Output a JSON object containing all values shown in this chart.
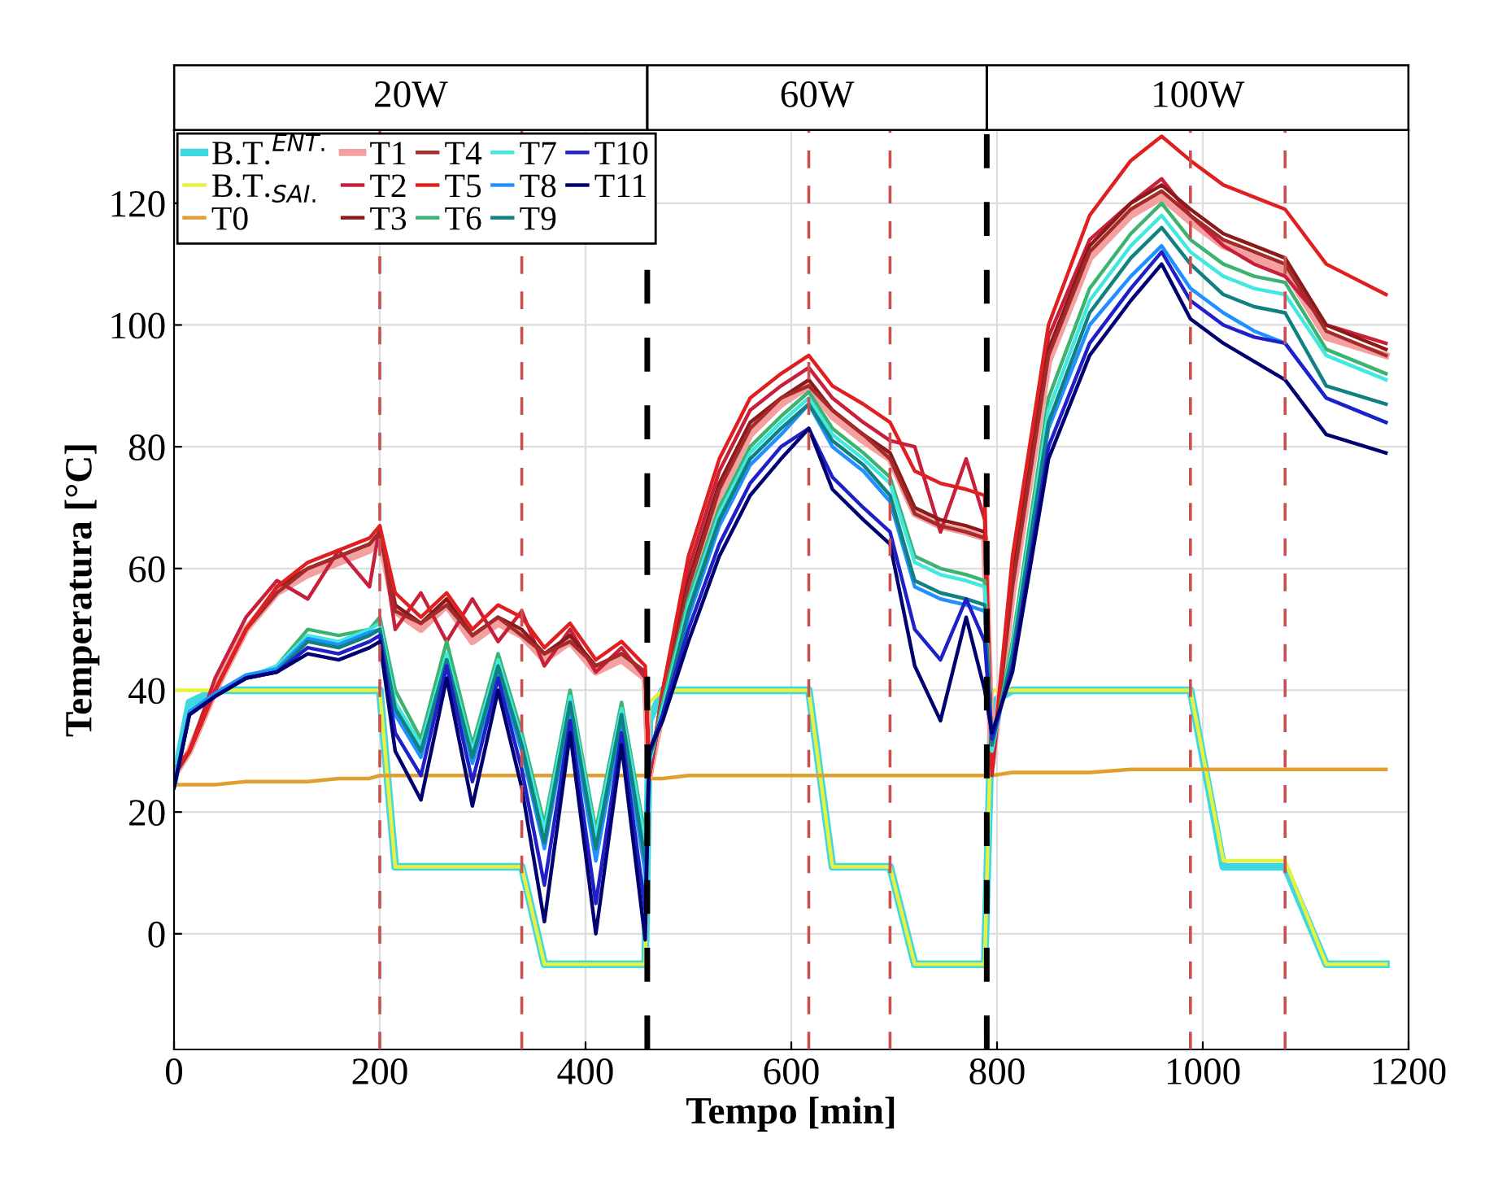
{
  "chart_data": {
    "type": "line",
    "xlabel": "Tempo [min]",
    "ylabel": "Temperatura [°C]",
    "x": [
      0,
      15,
      40,
      70,
      100,
      130,
      160,
      190,
      200,
      215,
      240,
      265,
      290,
      315,
      338,
      360,
      385,
      410,
      435,
      458,
      462,
      475,
      500,
      530,
      560,
      590,
      617,
      640,
      670,
      696,
      720,
      745,
      770,
      788,
      795,
      815,
      850,
      890,
      930,
      960,
      988,
      1020,
      1050,
      1080,
      1120,
      1178
    ],
    "xlim": [
      0,
      1200
    ],
    "xticks": [
      0,
      200,
      400,
      600,
      800,
      1000,
      1200
    ],
    "ylim": [
      -19,
      132
    ],
    "yticks": [
      0,
      20,
      40,
      60,
      80,
      100,
      120
    ],
    "grid": true,
    "legend": "top left",
    "marker": "none",
    "line_style": "solid",
    "annotations": [
      "20W",
      "60W",
      "100W"
    ],
    "ref_lines": [
      {
        "axis": "x",
        "value": 460,
        "color": "#000000",
        "line_style": "dashed"
      },
      {
        "axis": "x",
        "value": 790,
        "color": "#000000",
        "line_style": "dashed"
      },
      {
        "axis": "x",
        "value": 200,
        "color": "#c85050",
        "line_style": "dashed"
      },
      {
        "axis": "x",
        "value": 338,
        "color": "#c85050",
        "line_style": "dashed"
      },
      {
        "axis": "x",
        "value": 617,
        "color": "#c85050",
        "line_style": "dashed"
      },
      {
        "axis": "x",
        "value": 696,
        "color": "#c85050",
        "line_style": "dashed"
      },
      {
        "axis": "x",
        "value": 988,
        "color": "#c85050",
        "line_style": "dashed"
      },
      {
        "axis": "x",
        "value": 1080,
        "color": "#c85050",
        "line_style": "dashed"
      }
    ],
    "series": [
      {
        "name": "B.T.$^{ENT.}$",
        "color": "#40d8e0",
        "values": [
          25,
          38,
          40,
          40,
          40,
          40,
          40,
          40,
          40,
          11,
          11,
          11,
          11,
          11,
          11,
          -5,
          -5,
          -5,
          -5,
          -5,
          35,
          40,
          40,
          40,
          40,
          40,
          40,
          11,
          11,
          11,
          -5,
          -5,
          -5,
          -5,
          38,
          40,
          40,
          40,
          40,
          40,
          40,
          11,
          11,
          11,
          -5,
          -5
        ]
      },
      {
        "name": "B.T.$_{SAI.}$",
        "color": "#e8f040",
        "values": [
          40,
          40,
          40,
          40,
          40,
          40,
          40,
          40,
          40,
          11,
          11,
          11,
          11,
          11,
          11,
          -5,
          -5,
          -5,
          -5,
          -5,
          38,
          40,
          40,
          40,
          40,
          40,
          40,
          11,
          11,
          11,
          -5,
          -5,
          -5,
          -5,
          40,
          40,
          40,
          40,
          40,
          40,
          40,
          12,
          12,
          12,
          -5,
          -5
        ]
      },
      {
        "name": "T0",
        "color": "#e0a030",
        "values": [
          24.5,
          24.5,
          24.5,
          25,
          25,
          25,
          25.5,
          25.5,
          26,
          26,
          26,
          26,
          26,
          26,
          26,
          26,
          26,
          26,
          26,
          26,
          25.5,
          25.5,
          26,
          26,
          26,
          26,
          26,
          26,
          26,
          26,
          26,
          26,
          26,
          26,
          26,
          26.5,
          26.5,
          26.5,
          27,
          27,
          27,
          27,
          27,
          27,
          27,
          27
        ]
      },
      {
        "name": "T1",
        "color": "#f4a0a0",
        "values": [
          26,
          30,
          40,
          50,
          56,
          59,
          61,
          63,
          65,
          53,
          50,
          54,
          48,
          51,
          49,
          45,
          48,
          43,
          45,
          42,
          26,
          37,
          56,
          72,
          82,
          87,
          90,
          85,
          81,
          78,
          69,
          67,
          66,
          65,
          28,
          56,
          94,
          111,
          118,
          121,
          117,
          113,
          111,
          109,
          98,
          95
        ]
      },
      {
        "name": "T2",
        "color": "#c8203a",
        "values": [
          26,
          30,
          42,
          52,
          58,
          55,
          63,
          57,
          67,
          50,
          56,
          48,
          55,
          48,
          53,
          44,
          50,
          43,
          47,
          42,
          26,
          40,
          60,
          76,
          86,
          90,
          93,
          88,
          84,
          81,
          80,
          66,
          78,
          68,
          26,
          60,
          98,
          114,
          120,
          124,
          118,
          113,
          110,
          108,
          100,
          97
        ]
      },
      {
        "name": "T3",
        "color": "#8b1a1a",
        "values": [
          26,
          30,
          40,
          50,
          57,
          60,
          62,
          64,
          66,
          54,
          51,
          55,
          49,
          52,
          50,
          46,
          49,
          44,
          46,
          43,
          26,
          38,
          58,
          74,
          84,
          88,
          91,
          86,
          82,
          79,
          70,
          68,
          67,
          66,
          28,
          58,
          96,
          113,
          120,
          123,
          119,
          115,
          113,
          111,
          100,
          96
        ]
      },
      {
        "name": "T4",
        "color": "#a52a2a",
        "values": [
          26,
          30,
          40,
          50,
          56,
          60,
          62,
          64,
          66,
          53,
          51,
          54,
          49,
          52,
          49,
          46,
          48,
          44,
          46,
          43,
          26,
          38,
          57,
          73,
          83,
          88,
          90,
          86,
          82,
          78,
          69,
          67,
          66,
          65,
          28,
          57,
          95,
          112,
          119,
          122,
          118,
          114,
          112,
          110,
          99,
          95
        ]
      },
      {
        "name": "T5",
        "color": "#e02020",
        "values": [
          27,
          30,
          40,
          50,
          57,
          61,
          63,
          65,
          67,
          56,
          52,
          56,
          50,
          54,
          52,
          47,
          51,
          45,
          48,
          44,
          26,
          40,
          62,
          78,
          88,
          92,
          95,
          90,
          87,
          84,
          76,
          74,
          73,
          72,
          27,
          62,
          100,
          118,
          127,
          131,
          127,
          123,
          121,
          119,
          110,
          105
        ]
      },
      {
        "name": "T6",
        "color": "#3cb371",
        "values": [
          25,
          37,
          39,
          42,
          44,
          50,
          49,
          50,
          52,
          40,
          32,
          48,
          31,
          46,
          33,
          18,
          40,
          17,
          38,
          16,
          28,
          38,
          55,
          70,
          80,
          85,
          89,
          83,
          79,
          75,
          62,
          60,
          59,
          58,
          30,
          48,
          88,
          106,
          115,
          120,
          114,
          110,
          108,
          107,
          96,
          92
        ]
      },
      {
        "name": "T7",
        "color": "#40e8e0",
        "values": [
          25,
          37,
          39,
          42,
          44,
          49,
          48,
          50,
          51,
          38,
          31,
          46,
          30,
          45,
          32,
          17,
          39,
          16,
          37,
          15,
          28,
          37,
          54,
          69,
          79,
          84,
          88,
          82,
          78,
          74,
          61,
          59,
          58,
          57,
          30,
          47,
          86,
          104,
          113,
          118,
          112,
          108,
          106,
          105,
          95,
          91
        ]
      },
      {
        "name": "T8",
        "color": "#1e90ff",
        "values": [
          24.5,
          36.5,
          39.5,
          42.5,
          43.5,
          48.5,
          47.5,
          49.5,
          50,
          36,
          29,
          45,
          28,
          43,
          30,
          14,
          37,
          12,
          35,
          10,
          29,
          36,
          52,
          67,
          77,
          82,
          87,
          80,
          76,
          71,
          57,
          55,
          54,
          53,
          31,
          45,
          83,
          100,
          108,
          113,
          106,
          102,
          99,
          97,
          88,
          84
        ]
      },
      {
        "name": "T9",
        "color": "#108080",
        "values": [
          24,
          36,
          39,
          42,
          43,
          48,
          47,
          49,
          50,
          37,
          30,
          45,
          29,
          44,
          31,
          15,
          38,
          14,
          36,
          12,
          29,
          36,
          53,
          68,
          78,
          83,
          87,
          81,
          77,
          72,
          58,
          56,
          55,
          54,
          31,
          46,
          84,
          102,
          111,
          116,
          110,
          105,
          103,
          102,
          90,
          87
        ]
      },
      {
        "name": "T10",
        "color": "#2020c8",
        "values": [
          24,
          36,
          39,
          42,
          43,
          47,
          46,
          48,
          49,
          33,
          26,
          44,
          25,
          42,
          27,
          8,
          35,
          5,
          33,
          4,
          30,
          36,
          50,
          64,
          74,
          80,
          83,
          75,
          70,
          66,
          50,
          45,
          55,
          48,
          32,
          44,
          80,
          97,
          106,
          112,
          104,
          100,
          98,
          97,
          88,
          84
        ]
      },
      {
        "name": "T11",
        "color": "#000070",
        "values": [
          24,
          36,
          39,
          42,
          43,
          46,
          45,
          47,
          48,
          30,
          22,
          42,
          21,
          40,
          24,
          2,
          33,
          0,
          31,
          -1,
          30,
          35,
          48,
          62,
          72,
          78,
          83,
          73,
          68,
          64,
          44,
          35,
          52,
          40,
          33,
          43,
          78,
          95,
          104,
          110,
          101,
          97,
          94,
          91,
          82,
          79
        ]
      }
    ]
  }
}
